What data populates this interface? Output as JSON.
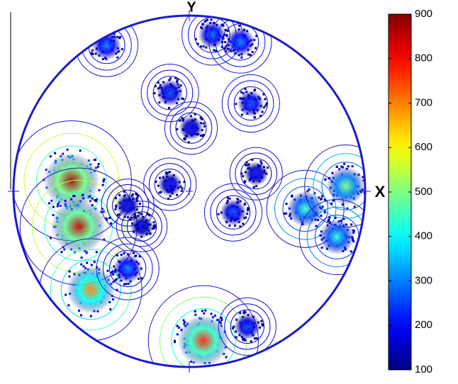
{
  "chart_data": {
    "type": "pole-figure",
    "x_label": "X",
    "y_label": "Y",
    "xlim": [
      -1,
      1
    ],
    "ylim": [
      -1,
      1
    ],
    "x": [
      -0.67,
      -0.63,
      -0.56,
      0.08,
      0.66,
      0.89,
      0.84,
      -0.47,
      0.13,
      0.29,
      -0.11,
      0.35,
      0.01,
      -0.11,
      0.25,
      0.38,
      -0.35,
      -0.27,
      -0.35,
      0.33
    ],
    "y": [
      0.06,
      -0.2,
      -0.56,
      -0.85,
      -0.1,
      0.03,
      -0.26,
      0.83,
      0.89,
      0.85,
      0.56,
      0.5,
      0.36,
      0.04,
      -0.12,
      0.1,
      -0.08,
      -0.2,
      -0.44,
      -0.77
    ],
    "values": [
      880,
      850,
      700,
      780,
      450,
      500,
      430,
      300,
      280,
      300,
      250,
      250,
      200,
      200,
      250,
      200,
      200,
      180,
      300,
      250
    ],
    "colormap": "jet",
    "clim": [
      100,
      900
    ],
    "cticks": [
      100,
      200,
      300,
      400,
      500,
      600,
      700,
      800,
      900
    ],
    "line_color": "#1a1acc"
  }
}
